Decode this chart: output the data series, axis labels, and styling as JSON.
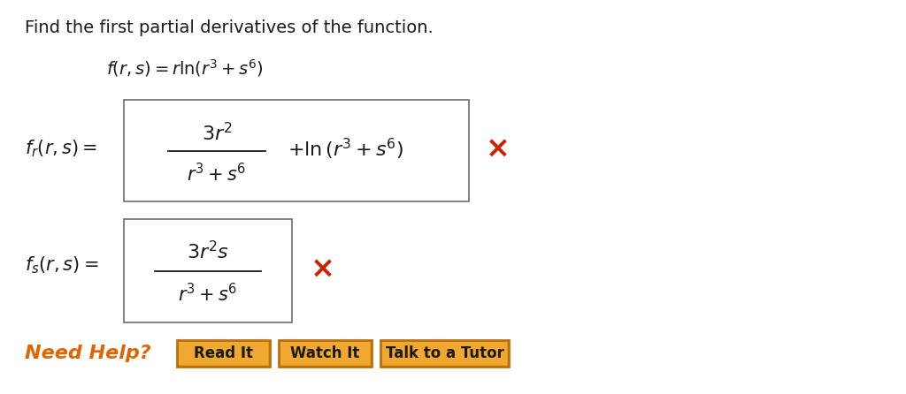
{
  "background_color": "#ffffff",
  "title_text": "Find the first partial derivatives of the function.",
  "title_color": "#1a1a1a",
  "title_fontsize": 14,
  "function_text": "$f(r, s) = r \\ln(r^3 + s^6)$",
  "function_color": "#1a1a1a",
  "function_fontsize": 14,
  "fr_label": "$f_r(r, s) =$",
  "fr_numerator": "$3r^2$",
  "fr_denominator": "$r^3 + s^6$",
  "fr_plus_ln": "$+ \\ln\\left(r^3 + s^6\\right)$",
  "fs_label": "$f_s(r, s) =$",
  "fs_numerator": "$3r^2s$",
  "fs_denominator": "$r^3 + s^6$",
  "math_color": "#1a1a1a",
  "math_fontsize": 15,
  "red_color": "#cc2200",
  "box_edge_color": "#777777",
  "need_help_color": "#dd6600",
  "need_help_text": "Need Help?",
  "need_help_fontsize": 16,
  "button_labels": [
    "Read It",
    "Watch It",
    "Talk to a Tutor"
  ],
  "button_face_color": "#e8960a",
  "button_edge_color": "#b87010",
  "button_text_color": "#1a1a00",
  "button_fontsize": 12
}
